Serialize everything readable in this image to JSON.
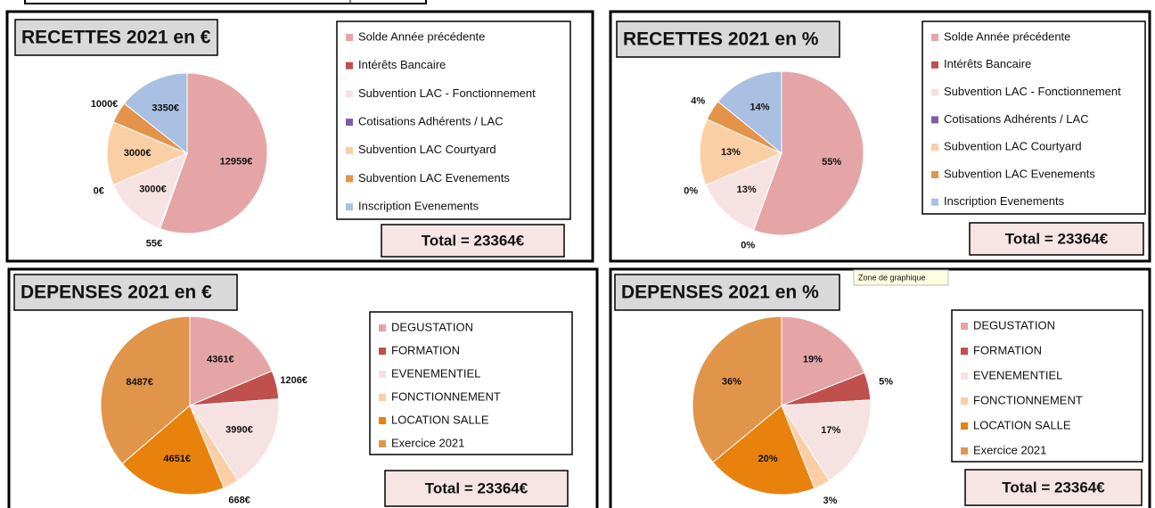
{
  "chart_data": [
    {
      "type": "pie",
      "title": "RECETTES 2021 en €",
      "categories": [
        "Solde Année précédente",
        "Intérêts Bancaire",
        "Subvention LAC - Fonctionnement",
        "Cotisations Adhérents / LAC",
        "Subvention LAC Courtyard",
        "Subvention LAC Evenements",
        "Inscription Evenements"
      ],
      "values": [
        12959,
        55,
        3000,
        0,
        3000,
        1000,
        3350
      ],
      "value_labels": [
        "12959€",
        "55€",
        "3000€",
        "0€",
        "3000€",
        "1000€",
        "3350€"
      ],
      "colors": [
        "#e5a5a7",
        "#c0504d",
        "#f6e2e3",
        "#7b5ea7",
        "#fbcfa6",
        "#e3944a",
        "#a9c0e2"
      ],
      "total": "Total = 23364€"
    },
    {
      "type": "pie",
      "title": "RECETTES 2021 en %",
      "categories": [
        "Solde Année précédente",
        "Intérêts Bancaire",
        "Subvention LAC - Fonctionnement",
        "Cotisations Adhérents / LAC",
        "Subvention LAC Courtyard",
        "Subvention LAC Evenements",
        "Inscription Evenements"
      ],
      "values": [
        55,
        0,
        13,
        0,
        13,
        4,
        14
      ],
      "value_labels": [
        "55%",
        "0%",
        "13%",
        "0%",
        "13%",
        "4%",
        "14%"
      ],
      "colors": [
        "#e5a5a7",
        "#c0504d",
        "#f6e2e3",
        "#7b5ea7",
        "#fbcfa6",
        "#e3944a",
        "#a9c0e2"
      ],
      "total": "Total = 23364€"
    },
    {
      "type": "pie",
      "title": "DEPENSES 2021 en €",
      "categories": [
        "DEGUSTATION",
        "FORMATION",
        "EVENEMENTIEL",
        "FONCTIONNEMENT",
        "LOCATION SALLE",
        "Exercice 2021"
      ],
      "values": [
        4361,
        1206,
        3990,
        668,
        4651,
        8487
      ],
      "value_labels": [
        "4361€",
        "1206€",
        "3990€",
        "668€",
        "4651€",
        "8487€"
      ],
      "colors": [
        "#e5a5a7",
        "#c0504d",
        "#f6e2e3",
        "#fbcfa6",
        "#e8820c",
        "#e0954a"
      ],
      "total": "Total = 23364€"
    },
    {
      "type": "pie",
      "title": "DEPENSES 2021 en %",
      "categories": [
        "DEGUSTATION",
        "FORMATION",
        "EVENEMENTIEL",
        "FONCTIONNEMENT",
        "LOCATION SALLE",
        "Exercice 2021"
      ],
      "values": [
        19,
        5,
        17,
        3,
        20,
        36
      ],
      "value_labels": [
        "19%",
        "5%",
        "17%",
        "3%",
        "20%",
        "36%"
      ],
      "colors": [
        "#e5a5a7",
        "#c0504d",
        "#f6e2e3",
        "#fbcfa6",
        "#e8820c",
        "#e0954a"
      ],
      "total": "Total = 23364€"
    }
  ],
  "tooltip": "Zone de graphique"
}
